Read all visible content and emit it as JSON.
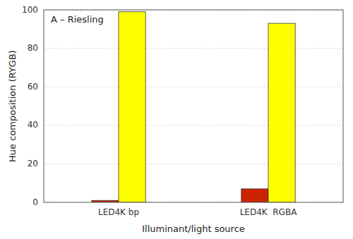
{
  "chart_data": {
    "type": "bar",
    "categories": [
      "LED4K bp",
      "LED4K  RGBA"
    ],
    "series": [
      {
        "color": "#cc2200",
        "values": [
          1.0,
          7.0
        ]
      },
      {
        "color": "#ffff00",
        "values": [
          99.0,
          93.0
        ]
      }
    ],
    "ylim": [
      0,
      100
    ],
    "yticks": [
      0,
      20,
      40,
      60,
      80,
      100
    ],
    "xlabel": "Illuminant/light source",
    "ylabel": "Hue composition (RYGB)",
    "annotation": "A – Riesling",
    "grid": true
  }
}
